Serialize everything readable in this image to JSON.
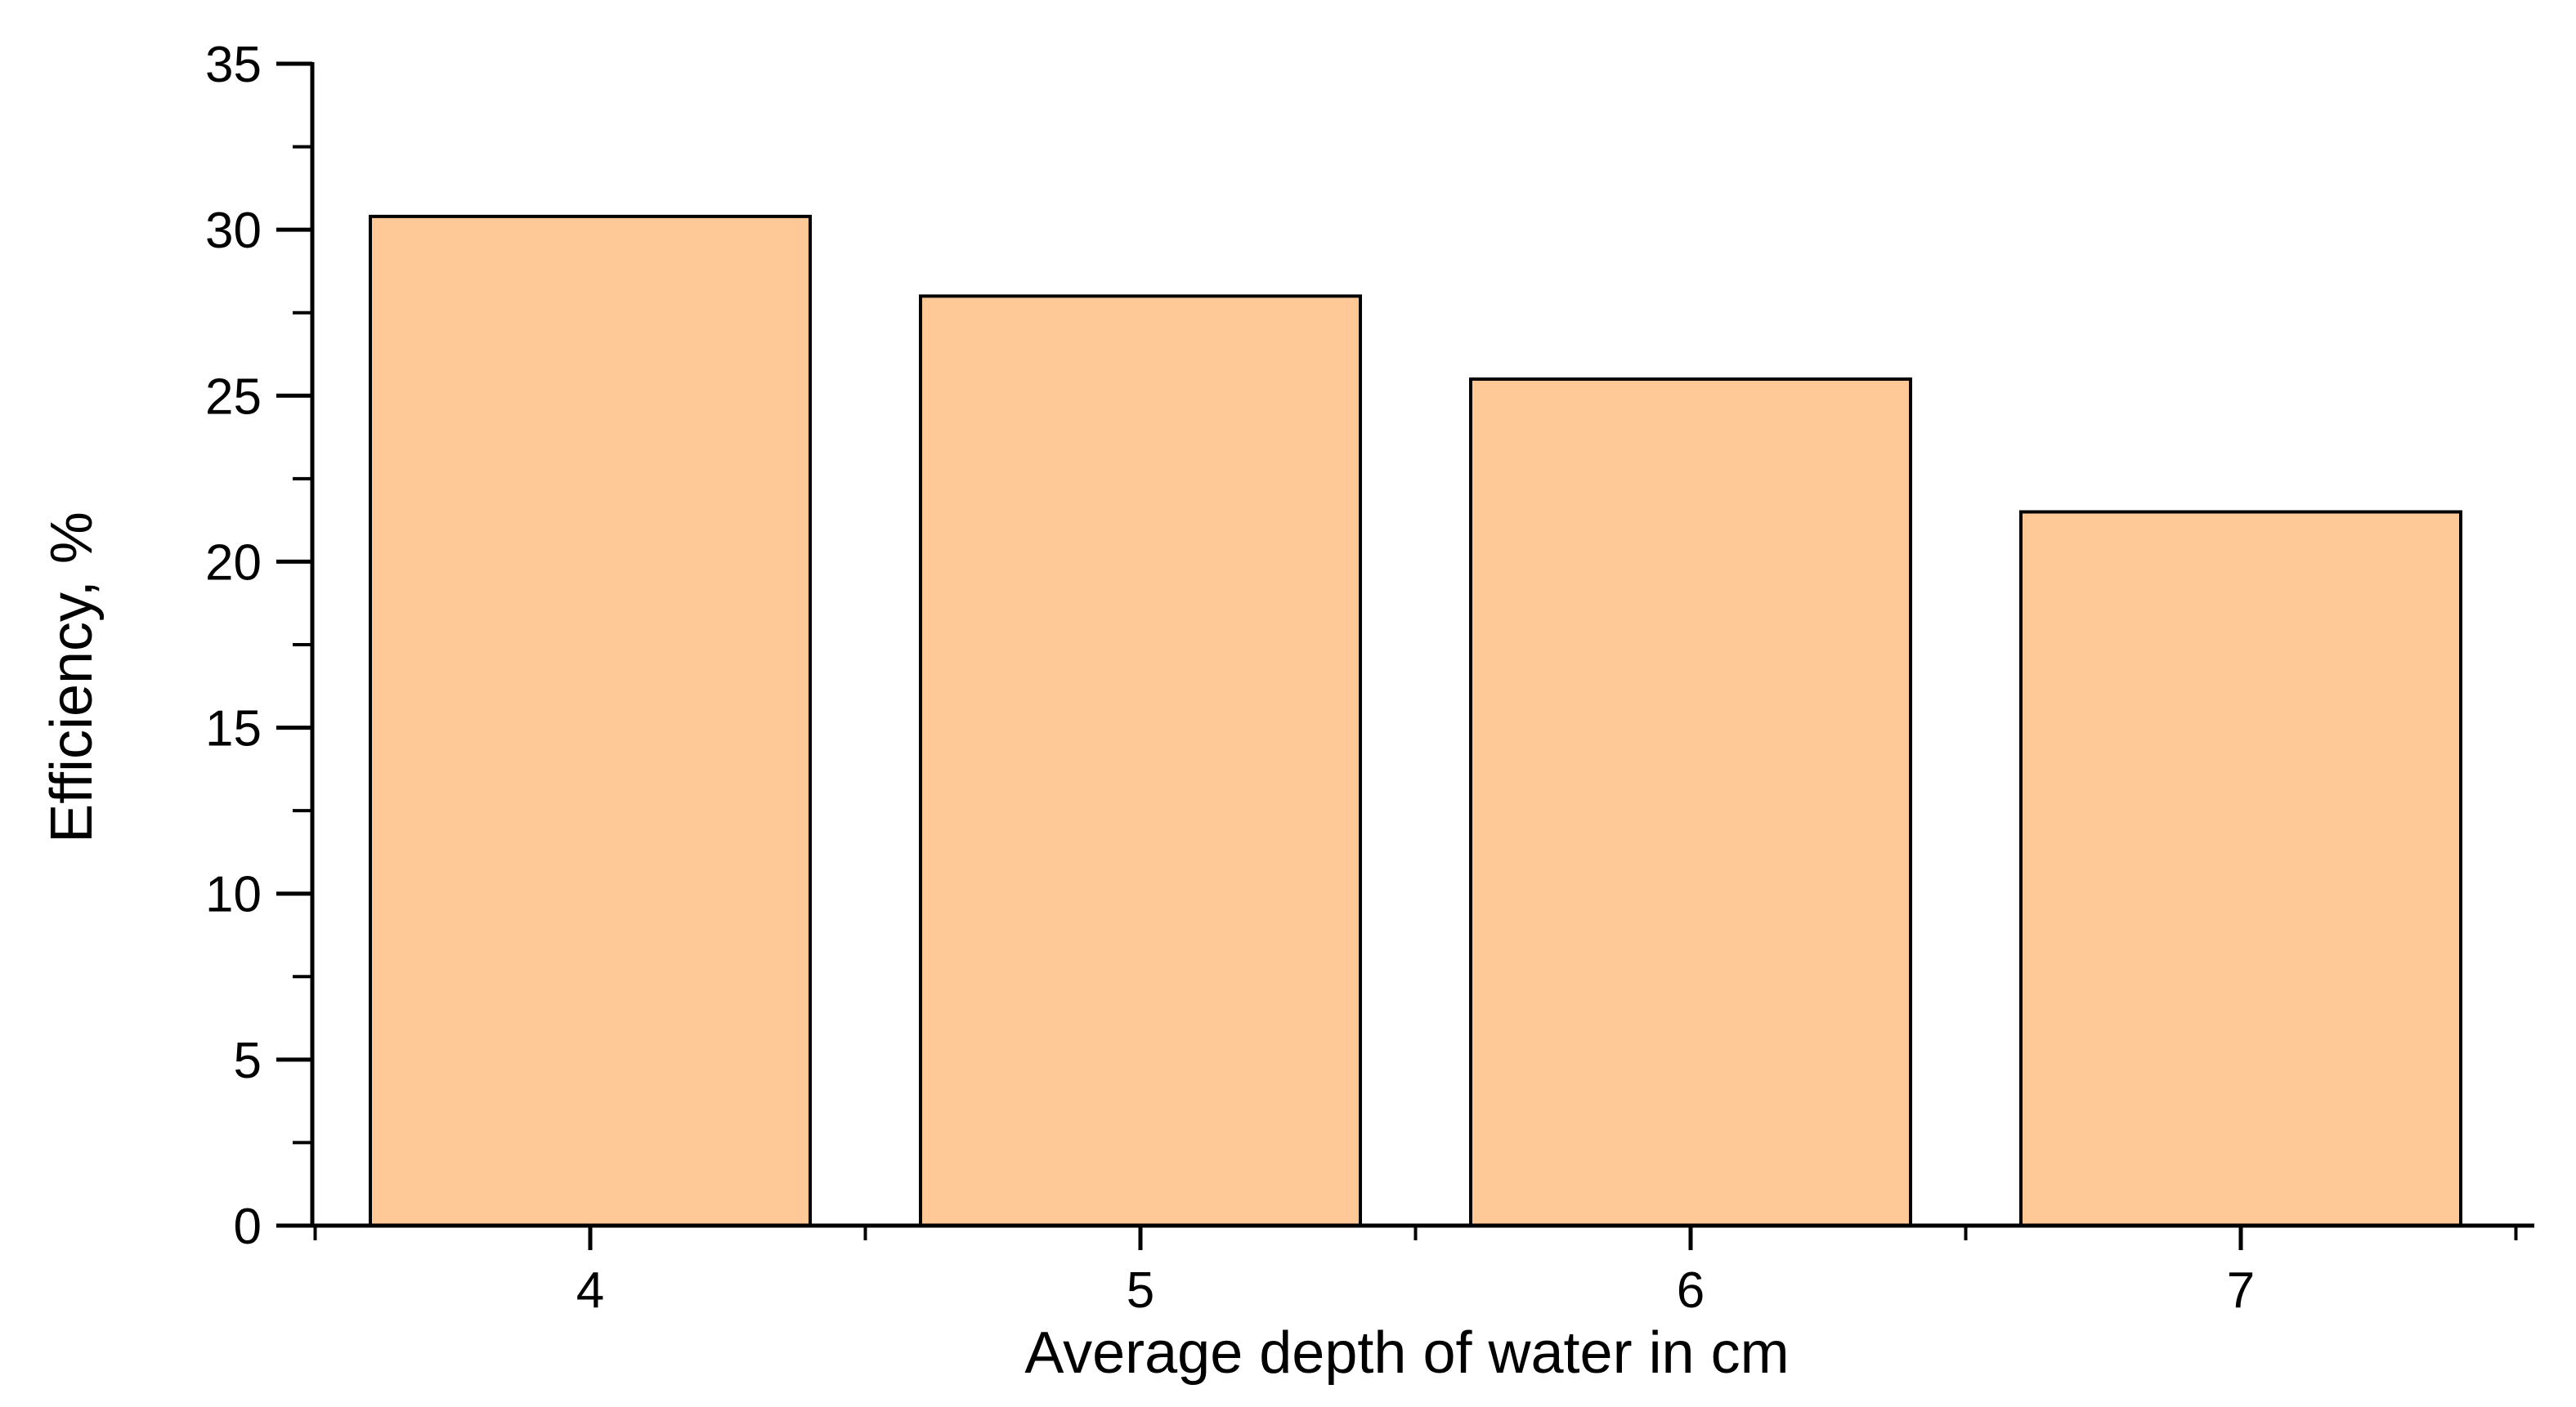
{
  "chart_data": {
    "type": "bar",
    "title": "",
    "xlabel": "Average depth of water in cm",
    "ylabel": "Efficiency, %",
    "categories": [
      "4",
      "5",
      "6",
      "7"
    ],
    "values": [
      30.4,
      28.0,
      25.5,
      21.5
    ],
    "ylim": [
      0,
      35
    ],
    "yticks": [
      0,
      5,
      10,
      15,
      20,
      25,
      30,
      35
    ],
    "ytick_labels": [
      "0",
      "5",
      "10",
      "15",
      "20",
      "25",
      "30",
      "35"
    ],
    "grid": false,
    "bar_color": "#FFC896",
    "edge_color": "#000000"
  }
}
